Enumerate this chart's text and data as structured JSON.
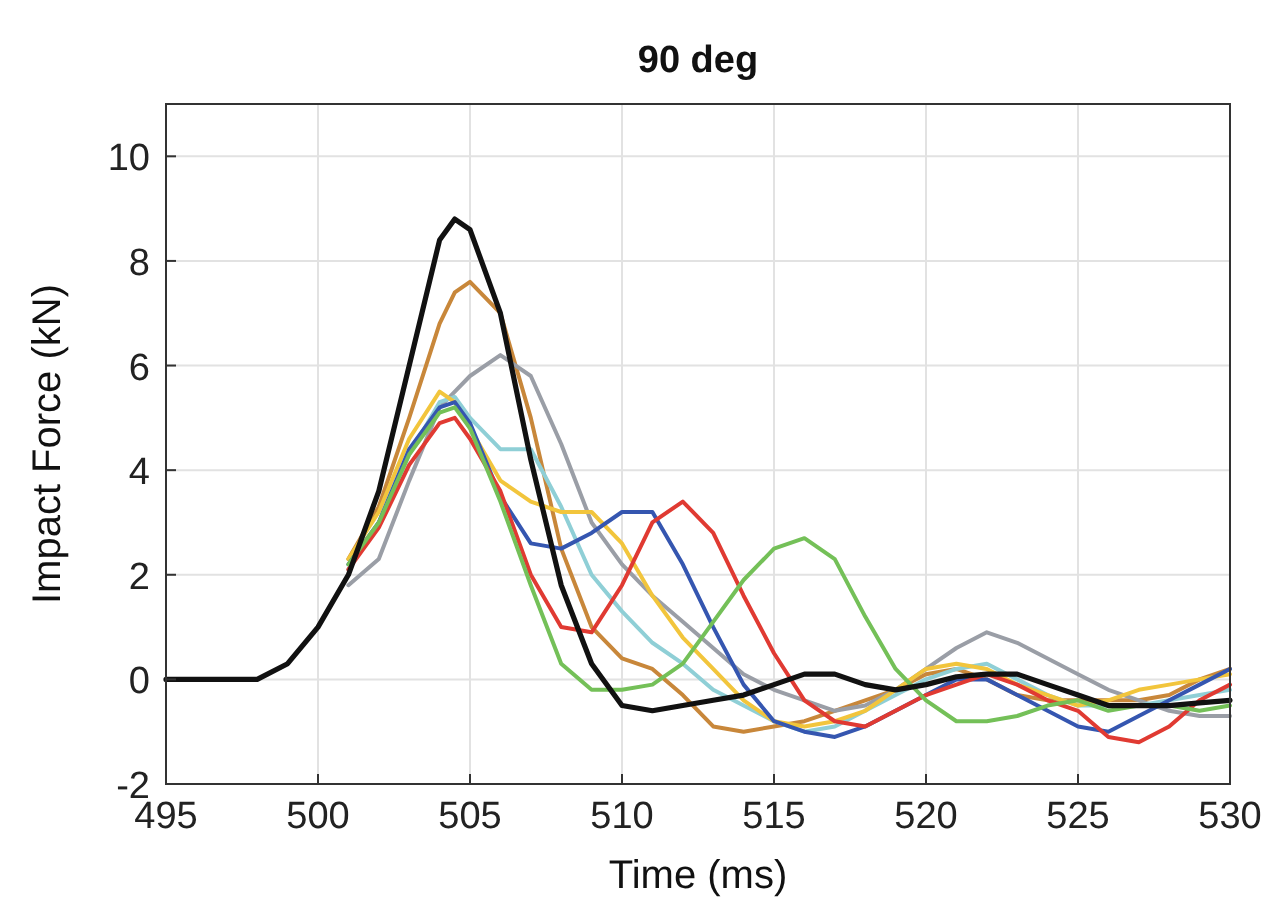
{
  "chart_data": {
    "type": "line",
    "title": "90 deg",
    "xlabel": "Time (ms)",
    "ylabel": "Impact Force (kN)",
    "x": [
      495,
      498,
      499,
      500,
      501,
      502,
      503,
      504,
      504.5,
      505,
      506,
      507,
      508,
      509,
      510,
      511,
      512,
      513,
      514,
      515,
      516,
      517,
      518,
      519,
      520,
      521,
      522,
      523,
      524,
      525,
      526,
      527,
      528,
      529,
      530
    ],
    "xlim": [
      495,
      530
    ],
    "xticks": [
      495,
      500,
      505,
      510,
      515,
      520,
      525,
      530
    ],
    "ylim": [
      -2,
      11
    ],
    "yticks": [
      -2,
      0,
      2,
      4,
      6,
      8,
      10
    ],
    "grid": true,
    "line_style": "solid",
    "series": [
      {
        "color": "#c8873a",
        "values": [
          null,
          null,
          null,
          null,
          2.3,
          3.3,
          5.0,
          6.8,
          7.4,
          7.6,
          7.0,
          5.0,
          2.5,
          1.0,
          0.4,
          0.2,
          -0.3,
          -0.9,
          -1.0,
          -0.9,
          -0.8,
          -0.6,
          -0.4,
          -0.2,
          0.1,
          0.2,
          0.0,
          -0.3,
          -0.4,
          -0.4,
          -0.4,
          -0.4,
          -0.3,
          0.0,
          0.2
        ]
      },
      {
        "color": "#9a9ea6",
        "values": [
          null,
          null,
          null,
          null,
          1.8,
          2.3,
          3.8,
          5.2,
          5.5,
          5.8,
          6.2,
          5.8,
          4.5,
          3.0,
          2.2,
          1.6,
          1.1,
          0.6,
          0.1,
          -0.2,
          -0.4,
          -0.6,
          -0.5,
          -0.2,
          0.2,
          0.6,
          0.9,
          0.7,
          0.4,
          0.1,
          -0.2,
          -0.4,
          -0.6,
          -0.7,
          -0.7
        ]
      },
      {
        "color": "#8fcfd6",
        "values": [
          null,
          null,
          null,
          null,
          2.1,
          3.0,
          4.3,
          5.3,
          5.4,
          5.0,
          4.4,
          4.4,
          3.3,
          2.0,
          1.3,
          0.7,
          0.3,
          -0.2,
          -0.5,
          -0.8,
          -1.0,
          -0.9,
          -0.6,
          -0.3,
          0,
          0.2,
          0.3,
          0.0,
          -0.3,
          -0.5,
          -0.5,
          -0.5,
          -0.4,
          -0.3,
          -0.2
        ]
      },
      {
        "color": "#f2c53c",
        "values": [
          null,
          null,
          null,
          null,
          2.3,
          3.2,
          4.6,
          5.5,
          5.3,
          4.8,
          3.8,
          3.4,
          3.2,
          3.2,
          2.6,
          1.6,
          0.8,
          0.2,
          -0.4,
          -0.8,
          -0.9,
          -0.8,
          -0.6,
          -0.2,
          0.2,
          0.3,
          0.2,
          -0.1,
          -0.3,
          -0.5,
          -0.4,
          -0.2,
          -0.1,
          0.0,
          0.1
        ]
      },
      {
        "color": "#3556b0",
        "values": [
          null,
          null,
          null,
          null,
          2.2,
          3.0,
          4.4,
          5.2,
          5.3,
          4.9,
          3.5,
          2.6,
          2.5,
          2.8,
          3.2,
          3.2,
          2.2,
          1.0,
          -0.1,
          -0.8,
          -1.0,
          -1.1,
          -0.9,
          -0.6,
          -0.3,
          0.0,
          0.0,
          -0.3,
          -0.6,
          -0.9,
          -1.0,
          -0.7,
          -0.4,
          -0.1,
          0.2
        ]
      },
      {
        "color": "#e03a32",
        "values": [
          null,
          null,
          null,
          null,
          2.1,
          2.9,
          4.1,
          4.9,
          5.0,
          4.6,
          3.6,
          2.0,
          1.0,
          0.9,
          1.8,
          3.0,
          3.4,
          2.8,
          1.6,
          0.5,
          -0.4,
          -0.8,
          -0.9,
          -0.6,
          -0.3,
          -0.1,
          0.1,
          -0.1,
          -0.4,
          -0.6,
          -1.1,
          -1.2,
          -0.9,
          -0.4,
          -0.1
        ]
      },
      {
        "color": "#74c058",
        "values": [
          null,
          null,
          null,
          null,
          2.2,
          3.0,
          4.3,
          5.1,
          5.2,
          4.8,
          3.4,
          1.8,
          0.3,
          -0.2,
          -0.2,
          -0.1,
          0.3,
          1.1,
          1.9,
          2.5,
          2.7,
          2.3,
          1.2,
          0.2,
          -0.4,
          -0.8,
          -0.8,
          -0.7,
          -0.5,
          -0.4,
          -0.6,
          -0.5,
          -0.5,
          -0.6,
          -0.5
        ]
      },
      {
        "color": "#111111",
        "values": [
          0,
          0,
          0.3,
          1.0,
          2.0,
          3.6,
          6.0,
          8.4,
          8.8,
          8.6,
          7.0,
          4.2,
          1.8,
          0.3,
          -0.5,
          -0.6,
          -0.5,
          -0.4,
          -0.3,
          -0.1,
          0.1,
          0.1,
          -0.1,
          -0.2,
          -0.1,
          0.05,
          0.1,
          0.1,
          -0.1,
          -0.3,
          -0.5,
          -0.5,
          -0.5,
          -0.45,
          -0.4
        ]
      }
    ]
  }
}
